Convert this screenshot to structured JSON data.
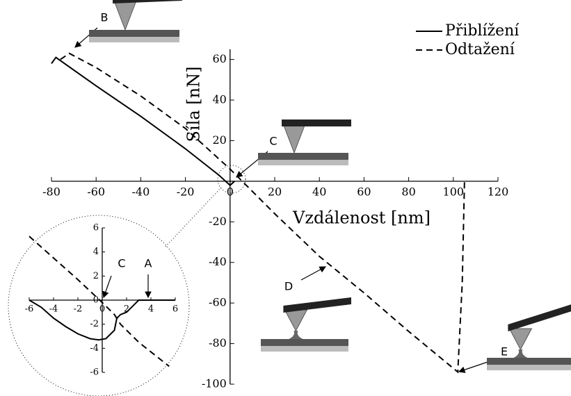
{
  "chart_data": [
    {
      "type": "line",
      "xlabel": "Vzdálenost [nm]",
      "ylabel": "Síla [nN]",
      "xlim": [
        -80,
        120
      ],
      "ylim": [
        -100,
        65
      ],
      "xticks": [
        -80,
        -60,
        -40,
        -20,
        0,
        20,
        40,
        60,
        80,
        100,
        120
      ],
      "yticks": [
        -100,
        -80,
        -60,
        -40,
        -20,
        0,
        20,
        40,
        60
      ],
      "legend": "upper right",
      "series": [
        {
          "name": "Přiblížení",
          "color": "#000000",
          "dash": "solid",
          "x": [
            -80,
            -78,
            -60,
            -40,
            -20,
            -5,
            0,
            2
          ],
          "values": [
            58,
            61,
            47,
            32,
            16,
            3,
            -2,
            0
          ]
        },
        {
          "name": "Odtažení",
          "color": "#000000",
          "dash": "dashed",
          "x": [
            -76,
            -72,
            -60,
            -40,
            -20,
            0,
            20,
            40,
            60,
            80,
            102,
            104,
            105
          ],
          "values": [
            60,
            63,
            56,
            42,
            26,
            6,
            -16,
            -37,
            -55,
            -74,
            -94,
            -50,
            0
          ]
        }
      ],
      "annotations": [
        "B",
        "C",
        "D",
        "E"
      ]
    },
    {
      "type": "line",
      "xlim": [
        -6,
        6
      ],
      "ylim": [
        -6,
        6
      ],
      "xticks": [
        -6,
        -4,
        -2,
        0,
        2,
        4,
        6
      ],
      "yticks": [
        -6,
        -4,
        -2,
        0,
        2,
        4,
        6
      ],
      "series": [
        {
          "color": "#000000",
          "dash": "solid",
          "x": [
            -6,
            -5,
            -4,
            -3,
            -2,
            -1,
            -0.3,
            0.3,
            1,
            1.2,
            1.5,
            2,
            2.5,
            3,
            4,
            6
          ],
          "values": [
            0,
            -0.6,
            -1.5,
            -2.2,
            -2.8,
            -3.2,
            -3.3,
            -3.2,
            -2.5,
            -1.5,
            -1.2,
            -1,
            -0.5,
            0,
            0,
            0
          ]
        },
        {
          "color": "#000000",
          "dash": "dashed",
          "x": [
            -6,
            -2,
            0,
            1,
            1.5,
            3,
            5.5
          ],
          "values": [
            5.3,
            1.7,
            -0.2,
            -1.2,
            -2,
            -3.5,
            -5.5
          ]
        }
      ],
      "annotations": [
        "C",
        "A"
      ]
    }
  ]
}
